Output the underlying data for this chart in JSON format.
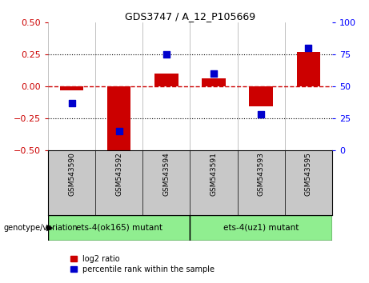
{
  "title": "GDS3747 / A_12_P105669",
  "samples": [
    "GSM543590",
    "GSM543592",
    "GSM543594",
    "GSM543591",
    "GSM543593",
    "GSM543595"
  ],
  "log2_ratio": [
    -0.03,
    -0.52,
    0.1,
    0.06,
    -0.16,
    0.27
  ],
  "percentile_rank": [
    37,
    15,
    75,
    60,
    28,
    80
  ],
  "groups": [
    {
      "label": "ets-4(ok165) mutant",
      "indices": [
        0,
        1,
        2
      ],
      "color": "#90ee90"
    },
    {
      "label": "ets-4(uz1) mutant",
      "indices": [
        3,
        4,
        5
      ],
      "color": "#90ee90"
    }
  ],
  "ylim_left": [
    -0.5,
    0.5
  ],
  "ylim_right": [
    0,
    100
  ],
  "yticks_left": [
    -0.5,
    -0.25,
    0,
    0.25,
    0.5
  ],
  "yticks_right": [
    0,
    25,
    50,
    75,
    100
  ],
  "bar_color": "#cc0000",
  "dot_color": "#0000cc",
  "hline_color": "#cc0000",
  "bg_sample": "#c8c8c8",
  "bg_group": "#90ee90",
  "label_genotype": "genotype/variation",
  "legend_bar": "log2 ratio",
  "legend_dot": "percentile rank within the sample",
  "bar_width": 0.5,
  "dot_size": 35
}
